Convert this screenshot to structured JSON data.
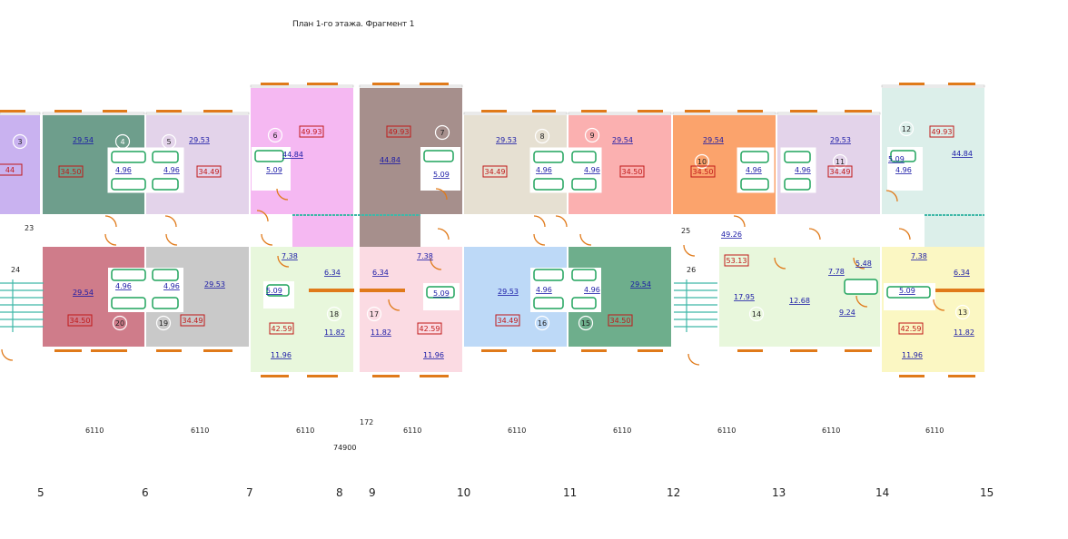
{
  "title": "План 1-го этажа. Фрагмент 1",
  "apartments_top": [
    {
      "num": "3",
      "a1": "",
      "a2": "44",
      "color": "#c9b2f0"
    },
    {
      "num": "4",
      "a1": "29.54",
      "a2": "34.50",
      "color": "#6e9e8c"
    },
    {
      "num": "5",
      "a1": "29.53",
      "a2": "34.49",
      "color": "#e3d3ea"
    },
    {
      "num": "6",
      "a1": "49.93",
      "a2": "44.84",
      "color": "#f5b8f2"
    },
    {
      "num": "7",
      "a1": "49.93",
      "a2": "44.84",
      "color": "#a68f8c"
    },
    {
      "num": "8",
      "a1": "29.53",
      "a2": "34.49",
      "color": "#e6e0d2"
    },
    {
      "num": "9",
      "a1": "29.54",
      "a2": "34.50",
      "color": "#fbb0b0"
    },
    {
      "num": "10",
      "a1": "29.54",
      "a2": "34.50",
      "color": "#fba36c"
    },
    {
      "num": "11",
      "a1": "29.53",
      "a2": "34.49",
      "color": "#e3d3ea"
    },
    {
      "num": "12",
      "a1": "49.93",
      "a2": "44.84",
      "color": "#dcefea"
    }
  ],
  "apartments_bottom": [
    {
      "num": "20",
      "a1": "29.54",
      "a2": "34.50",
      "color": "#cf7c8a"
    },
    {
      "num": "19",
      "a1": "29.53",
      "a2": "34.49",
      "color": "#c9c9c9"
    },
    {
      "num": "18",
      "a1": "6.34",
      "a2": "11.82",
      "color": "#e8f7dc"
    },
    {
      "num": "17",
      "a1": "6.34",
      "a2": "11.82",
      "color": "#fbdbe3"
    },
    {
      "num": "16",
      "a1": "29.53",
      "a2": "34.49",
      "color": "#bdd9f7"
    },
    {
      "num": "15",
      "a1": "29.54",
      "a2": "34.50",
      "color": "#6eae8c"
    },
    {
      "num": "14",
      "a1": "17.95",
      "a2": "12.68",
      "color": "#e8f7dc"
    },
    {
      "num": "13",
      "a1": "6.34",
      "a2": "11.82",
      "color": "#fbf7c3"
    }
  ],
  "bath_area": "4.96",
  "bath_area_large": "5.09",
  "room_labels": {
    "r738a": "7.38",
    "r738b": "7.38",
    "r738c": "7.38",
    "r509a": "5.09",
    "r509b": "5.09",
    "r509c": "5.09",
    "r4259a": "42.59",
    "r4259b": "42.59",
    "r4259c": "42.59",
    "r1196a": "11.96",
    "r1196b": "11.96",
    "r1196c": "11.96",
    "r4926": "49.26",
    "r5313": "53.13",
    "r778": "7.78",
    "r548": "5.48",
    "r924": "9.24"
  },
  "spaces": {
    "s23": "23",
    "s24": "24",
    "s25": "25",
    "s26": "26"
  },
  "dimensions": [
    "6110",
    "6110",
    "6110",
    "6110",
    "6110",
    "6110",
    "6110",
    "6110",
    "6110"
  ],
  "dim_small": "172",
  "dim_total": "74900",
  "axes": [
    "5",
    "6",
    "7",
    "8",
    "9",
    "10",
    "11",
    "12",
    "13",
    "14",
    "15"
  ]
}
